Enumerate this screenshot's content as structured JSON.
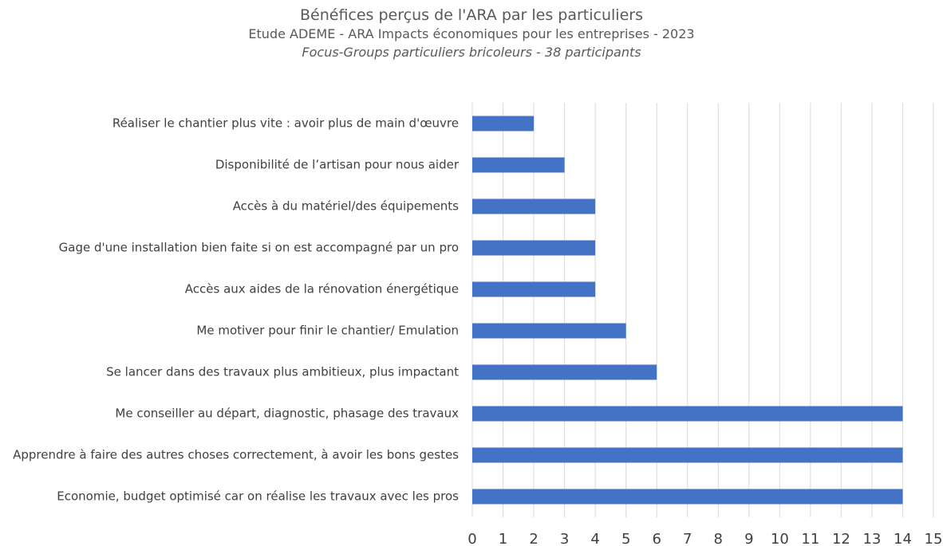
{
  "chart_data": {
    "type": "bar",
    "orientation": "horizontal",
    "title": "Bénéfices perçus de l'ARA par les particuliers",
    "subtitle": "Etude ADEME - ARA Impacts économiques pour les entreprises - 2023",
    "caption": "Focus-Groups particuliers bricoleurs - 38 participants",
    "categories": [
      "Réaliser le chantier plus vite : avoir plus de main d'œuvre",
      "Disponibilité de l’artisan pour nous aider",
      "Accès à du matériel/des équipements",
      "Gage d'une installation bien faite si on est accompagné par un pro",
      "Accès aux aides de la rénovation énergétique",
      "Me motiver pour finir le chantier/ Emulation",
      "Se lancer dans des travaux plus ambitieux, plus impactant",
      "Me conseiller au départ, diagnostic, phasage des travaux",
      "Apprendre à faire des autres choses correctement, à avoir les bons gestes",
      "Economie, budget optimisé car on réalise les travaux avec les pros"
    ],
    "values": [
      2,
      3,
      4,
      4,
      4,
      5,
      6,
      14,
      14,
      14
    ],
    "color": "#4472c4",
    "xlim": [
      0,
      15
    ],
    "xticks": [
      0,
      1,
      2,
      3,
      4,
      5,
      6,
      7,
      8,
      9,
      10,
      11,
      12,
      13,
      14,
      15
    ],
    "grid": true
  }
}
